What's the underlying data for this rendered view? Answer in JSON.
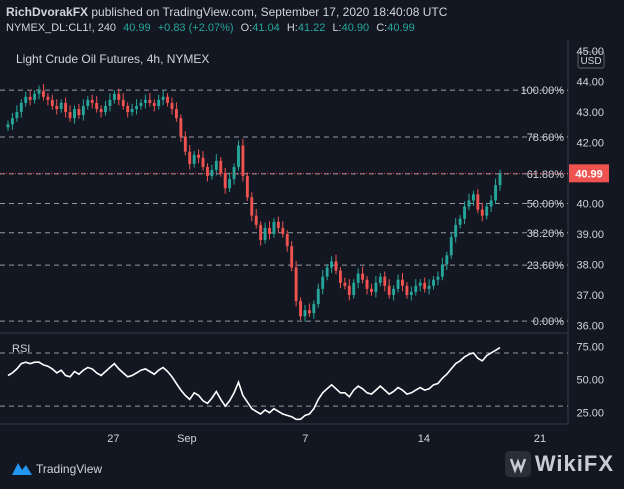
{
  "header": {
    "author": "RichDvorakFX",
    "published_text": "published on TradingView.com, September 17, 2020 18:40:08 UTC",
    "symbol": "NYMEX_DL:CL1!, 240",
    "last": "40.99",
    "change": "+0.83 (+2.07%)",
    "o_label": "O:",
    "o_value": "41.04",
    "h_label": "H:",
    "h_value": "41.22",
    "l_label": "L:",
    "l_value": "40.90",
    "c_label": "C:",
    "c_value": "40.99"
  },
  "footer": {
    "brand": "TradingView",
    "watermark": "WikiFX"
  },
  "colors": {
    "background": "#131722",
    "up": "#26a69a",
    "down": "#ef5350",
    "price_tag": "#ef5350",
    "rsi_line": "#ffffff",
    "grid_dash": "#9598a1"
  },
  "chart_data": [
    {
      "type": "candlestick",
      "title": "Light Crude Oil Futures, 4h, NYMEX",
      "currency": "USD",
      "last_price": "40.99",
      "ylim": [
        35.85,
        45.2
      ],
      "y_ticks": [
        "45.00",
        "44.00",
        "43.00",
        "42.00",
        "41.00",
        "40.00",
        "39.00",
        "38.00",
        "37.00",
        "36.00"
      ],
      "x_ticks": [
        {
          "label": "27",
          "t": 0.1
        },
        {
          "label": "Sep",
          "t": 0.255
        },
        {
          "label": "7",
          "t": 0.505
        },
        {
          "label": "14",
          "t": 0.755
        },
        {
          "label": "21",
          "t": 1.0
        }
      ],
      "fib_levels": [
        {
          "label": "100.00%",
          "price": 43.72
        },
        {
          "label": "78.60%",
          "price": 42.18
        },
        {
          "label": "61.80%",
          "price": 40.97
        },
        {
          "label": "50.00%",
          "price": 40.0
        },
        {
          "label": "38.20%",
          "price": 39.04
        },
        {
          "label": "23.60%",
          "price": 37.98
        },
        {
          "label": "0.00%",
          "price": 36.14
        }
      ],
      "close": [
        42.6,
        42.8,
        43.0,
        43.3,
        43.5,
        43.4,
        43.6,
        43.7,
        43.5,
        43.4,
        43.2,
        43.1,
        43.3,
        43.0,
        42.8,
        43.1,
        42.9,
        43.2,
        43.4,
        43.3,
        43.1,
        43.0,
        43.2,
        43.4,
        43.6,
        43.4,
        43.2,
        43.0,
        43.1,
        43.2,
        43.3,
        43.4,
        43.3,
        43.2,
        43.4,
        43.5,
        43.3,
        43.1,
        42.8,
        42.2,
        41.7,
        41.3,
        41.6,
        41.5,
        41.2,
        40.9,
        41.1,
        41.4,
        41.0,
        40.5,
        40.8,
        41.2,
        41.9,
        40.9,
        40.2,
        39.6,
        39.3,
        38.8,
        39.2,
        39.0,
        39.4,
        39.2,
        39.0,
        38.6,
        37.9,
        36.8,
        36.3,
        36.5,
        36.4,
        36.7,
        37.2,
        37.6,
        37.9,
        38.1,
        37.8,
        37.4,
        37.3,
        37.0,
        37.4,
        37.7,
        37.5,
        37.2,
        37.1,
        37.4,
        37.6,
        37.3,
        37.0,
        37.2,
        37.5,
        37.3,
        37.0,
        37.1,
        37.3,
        37.4,
        37.2,
        37.3,
        37.5,
        37.6,
        38.0,
        38.3,
        38.9,
        39.3,
        39.5,
        39.9,
        40.1,
        40.3,
        39.8,
        39.6,
        39.9,
        40.1,
        40.6,
        40.99
      ],
      "rsi": {
        "label": "RSI",
        "ylim": [
          18,
          82
        ],
        "y_ticks": [
          "75.00",
          "50.00",
          "25.00"
        ],
        "levels": [
          70,
          30
        ],
        "values": [
          53,
          55,
          58,
          62,
          63,
          62,
          63,
          63,
          61,
          60,
          58,
          55,
          57,
          53,
          52,
          56,
          54,
          57,
          59,
          58,
          55,
          53,
          56,
          59,
          62,
          58,
          55,
          52,
          53,
          55,
          57,
          58,
          56,
          54,
          57,
          59,
          56,
          52,
          47,
          42,
          38,
          35,
          40,
          38,
          34,
          32,
          36,
          41,
          35,
          30,
          34,
          40,
          48,
          38,
          33,
          28,
          26,
          24,
          27,
          25,
          28,
          26,
          24,
          23,
          22,
          20,
          20,
          23,
          24,
          28,
          35,
          40,
          43,
          46,
          43,
          40,
          40,
          37,
          42,
          45,
          43,
          40,
          39,
          42,
          45,
          42,
          39,
          41,
          44,
          42,
          39,
          40,
          42,
          44,
          42,
          43,
          46,
          47,
          51,
          54,
          58,
          62,
          64,
          67,
          69,
          70,
          66,
          64,
          68,
          70,
          72,
          74
        ]
      }
    }
  ]
}
